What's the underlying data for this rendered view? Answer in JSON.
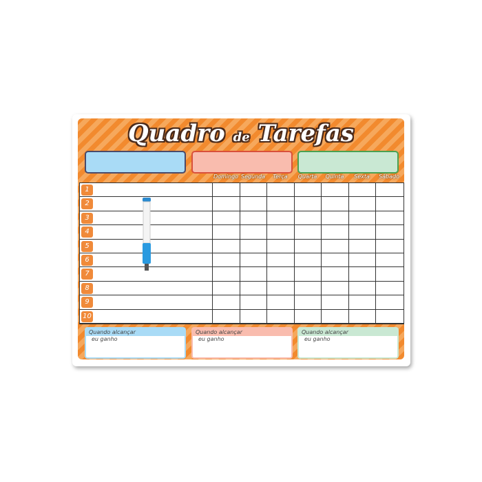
{
  "title": {
    "part1": "Quadro",
    "part2": "de",
    "part3": "Tarefas"
  },
  "color_boxes": [
    {
      "fill": "#a9dbf6",
      "border": "#4a4a6a"
    },
    {
      "fill": "#f9bcae",
      "border": "#d9503a"
    },
    {
      "fill": "#c9e8d3",
      "border": "#4aa050"
    }
  ],
  "days": [
    "Domingo",
    "Segunda",
    "Terça",
    "Quarta",
    "Quinta",
    "Sexta",
    "Sábado"
  ],
  "rows": [
    "1",
    "2",
    "3",
    "4",
    "5",
    "6",
    "7",
    "8",
    "9",
    "10"
  ],
  "footer_boxes": [
    {
      "heading": "Quando alcançar",
      "text": "eu ganho",
      "color": "#a9dbf6"
    },
    {
      "heading": "Quando alcançar",
      "text": "eu ganho",
      "color": "#f9bcae"
    },
    {
      "heading": "Quando alcançar",
      "text": "eu ganho",
      "color": "#c9e8d3"
    }
  ],
  "colors": {
    "orange": "#f28a2e",
    "orange_light": "#f6a85c"
  }
}
